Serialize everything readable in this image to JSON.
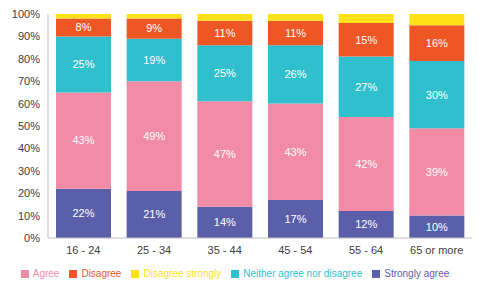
{
  "chart_data": {
    "type": "bar",
    "stacked": true,
    "grid": false,
    "legend": "bottom",
    "categories": [
      "16 - 24",
      "25 - 34",
      "35 - 44",
      "45 - 54",
      "55 - 64",
      "65 or more"
    ],
    "ylim": [
      0,
      100
    ],
    "yticks": [
      {
        "value": 0,
        "label": "0%"
      },
      {
        "value": 10,
        "label": "10%"
      },
      {
        "value": 20,
        "label": "20%"
      },
      {
        "value": 30,
        "label": "30%"
      },
      {
        "value": 40,
        "label": "40%"
      },
      {
        "value": 50,
        "label": "50%"
      },
      {
        "value": 60,
        "label": "60%"
      },
      {
        "value": 70,
        "label": "70%"
      },
      {
        "value": 80,
        "label": "80%"
      },
      {
        "value": 90,
        "label": "90%"
      },
      {
        "value": 100,
        "label": "100%"
      }
    ],
    "series": [
      {
        "name": "Strongly agree",
        "color": "#5b5faa",
        "values": [
          22,
          21,
          14,
          17,
          12,
          10
        ],
        "data_labels": true,
        "value_labels": [
          "22%",
          "21%",
          "14%",
          "17%",
          "12%",
          "10%"
        ]
      },
      {
        "name": "Agree",
        "color": "#f28ca6",
        "values": [
          43,
          49,
          47,
          43,
          42,
          39
        ],
        "data_labels": true,
        "value_labels": [
          "43%",
          "49%",
          "47%",
          "43%",
          "42%",
          "39%"
        ]
      },
      {
        "name": "Neither agree nor disagree",
        "color": "#30bfcc",
        "values": [
          25,
          19,
          25,
          26,
          27,
          30
        ],
        "data_labels": true,
        "value_labels": [
          "25%",
          "19%",
          "25%",
          "26%",
          "27%",
          "30%"
        ]
      },
      {
        "name": "Disagree",
        "color": "#ef5626",
        "values": [
          8,
          9,
          11,
          11,
          15,
          16
        ],
        "data_labels": true,
        "value_labels": [
          "8%",
          "9%",
          "11%",
          "11%",
          "15%",
          "16%"
        ]
      },
      {
        "name": "Disagree strongly",
        "color": "#ffe01b",
        "values": [
          2,
          2,
          3,
          3,
          4,
          5
        ],
        "data_labels": false
      }
    ]
  }
}
